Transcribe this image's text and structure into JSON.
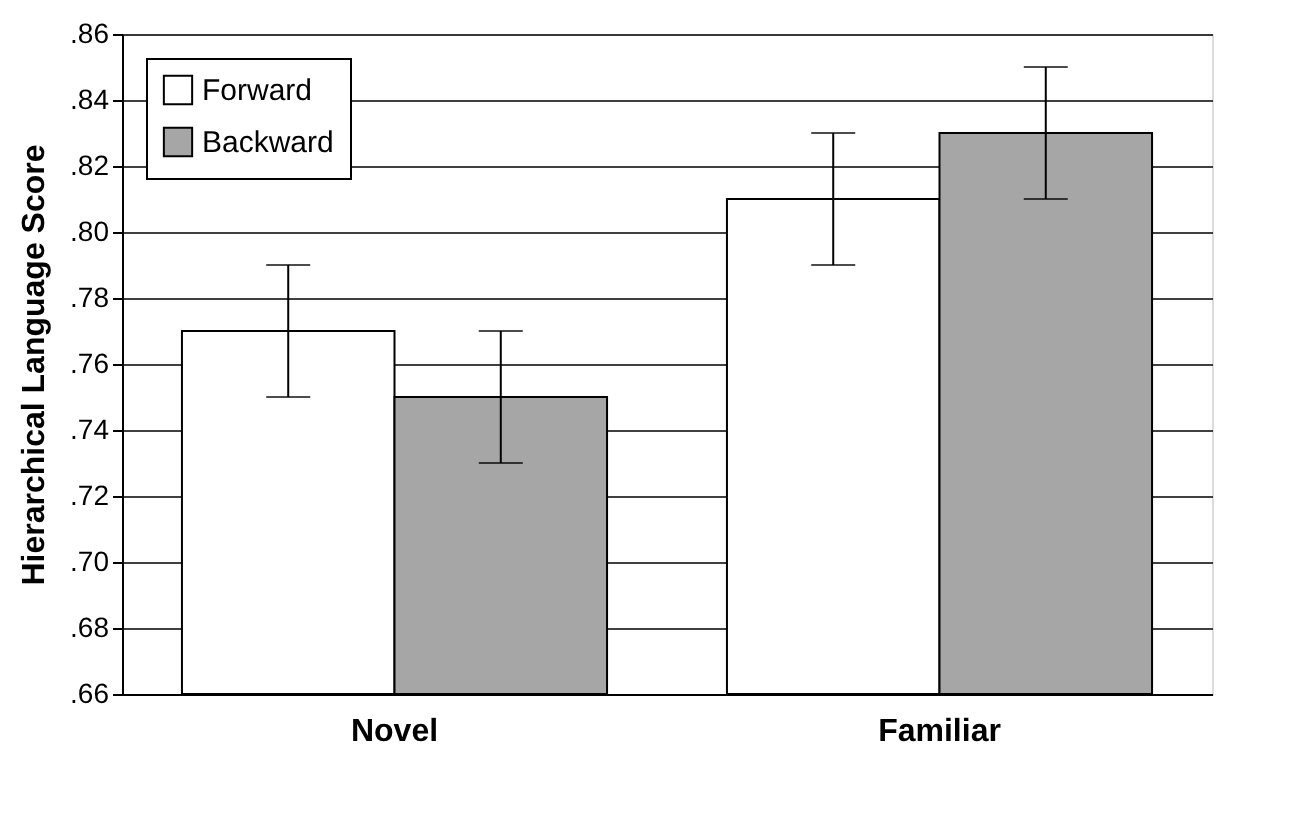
{
  "chart_data": {
    "type": "bar",
    "ylabel": "Hierarchical Language Score",
    "categories": [
      "Novel",
      "Familiar"
    ],
    "series": [
      {
        "name": "Forward",
        "color": "#ffffff",
        "values": [
          0.77,
          0.81
        ],
        "errors": [
          0.02,
          0.02
        ]
      },
      {
        "name": "Backward",
        "color": "#a6a6a6",
        "values": [
          0.75,
          0.83
        ],
        "errors": [
          0.02,
          0.02
        ]
      }
    ],
    "ylim": [
      0.66,
      0.86
    ],
    "yticks": [
      {
        "value": 0.66,
        "label": ".66"
      },
      {
        "value": 0.68,
        "label": ".68"
      },
      {
        "value": 0.7,
        "label": ".70"
      },
      {
        "value": 0.72,
        "label": ".72"
      },
      {
        "value": 0.74,
        "label": ".74"
      },
      {
        "value": 0.76,
        "label": ".76"
      },
      {
        "value": 0.78,
        "label": ".78"
      },
      {
        "value": 0.8,
        "label": ".80"
      },
      {
        "value": 0.82,
        "label": ".82"
      },
      {
        "value": 0.84,
        "label": ".84"
      },
      {
        "value": 0.86,
        "label": ".86"
      }
    ],
    "grid": "y",
    "legend": "top left"
  }
}
